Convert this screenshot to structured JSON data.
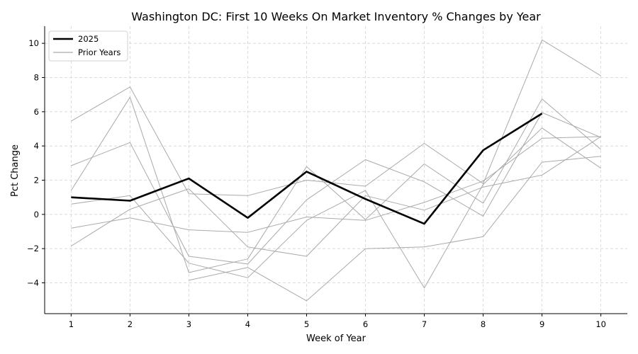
{
  "chart_data": {
    "type": "line",
    "title": "Washington DC: First 10 Weeks On Market Inventory % Changes by Year",
    "xlabel": "Week of Year",
    "ylabel": "Pct Change",
    "x": [
      1,
      2,
      3,
      4,
      5,
      6,
      7,
      8,
      9,
      10
    ],
    "xlim": [
      0.55,
      10.45
    ],
    "ylim": [
      -5.8,
      11.0
    ],
    "yticks": [
      -4,
      -2,
      0,
      2,
      4,
      6,
      8,
      10
    ],
    "grid": true,
    "legend_position": "top-left",
    "series": [
      {
        "name": "2025",
        "color": "#000000",
        "values": [
          1.0,
          0.8,
          2.1,
          -0.2,
          2.5,
          0.9,
          -0.55,
          3.75,
          5.9,
          null
        ]
      },
      {
        "name": "Prior Years",
        "color": "#aaaaaa",
        "values": [
          5.45,
          7.45,
          1.2,
          1.1,
          2.0,
          1.65,
          4.15,
          1.8,
          10.2,
          8.1
        ]
      },
      {
        "color": "#aaaaaa",
        "values": [
          1.4,
          6.85,
          -3.4,
          -2.6,
          2.8,
          -0.3,
          2.95,
          0.65,
          6.75,
          3.8
        ]
      },
      {
        "color": "#aaaaaa",
        "values": [
          2.85,
          4.2,
          -2.45,
          -2.9,
          0.85,
          3.2,
          1.9,
          -0.1,
          5.95,
          4.5
        ]
      },
      {
        "color": "#aaaaaa",
        "values": [
          0.6,
          1.1,
          -2.85,
          -3.7,
          -0.35,
          1.4,
          -4.3,
          1.75,
          5.05,
          2.7
        ]
      },
      {
        "color": "#aaaaaa",
        "values": [
          -1.85,
          0.3,
          1.5,
          -1.9,
          -2.45,
          1.1,
          0.25,
          1.6,
          2.3,
          4.55
        ]
      },
      {
        "color": "#aaaaaa",
        "values": [
          -0.8,
          -0.2,
          -0.9,
          -1.05,
          -0.15,
          -0.35,
          0.7,
          1.95,
          4.45,
          4.55
        ]
      },
      {
        "color": "#aaaaaa",
        "values": [
          null,
          null,
          -3.85,
          -3.1,
          -5.05,
          -2.0,
          -1.9,
          -1.3,
          3.05,
          3.4
        ]
      }
    ],
    "legend": [
      {
        "label": "2025",
        "color": "#000000",
        "width": 2.5
      },
      {
        "label": "Prior Years",
        "color": "#aaaaaa",
        "width": 1
      }
    ]
  }
}
